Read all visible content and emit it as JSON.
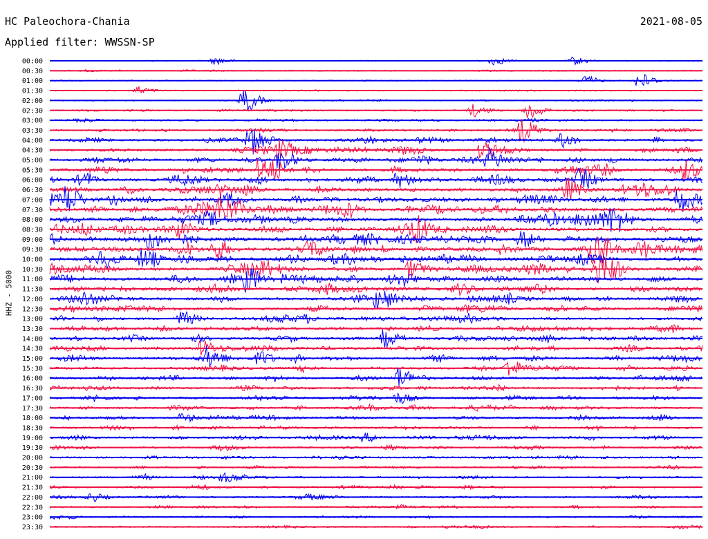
{
  "header": {
    "station": "HC Paleochora-Chania",
    "date": "2021-08-05",
    "filter": "Applied filter: WWSSN-SP"
  },
  "chart_data": {
    "type": "line",
    "title": "HC Paleochora-Chania",
    "date": "2021-08-05",
    "subtitle": "Applied filter: WWSSN-SP",
    "ylabel": "HHZ - 5000",
    "row_labels": [
      "00:00",
      "00:30",
      "01:00",
      "01:30",
      "02:00",
      "02:30",
      "03:00",
      "03:30",
      "04:00",
      "04:30",
      "05:00",
      "05:30",
      "06:00",
      "06:30",
      "07:00",
      "07:30",
      "08:00",
      "08:30",
      "09:00",
      "09:30",
      "10:00",
      "10:30",
      "11:00",
      "11:30",
      "12:00",
      "12:30",
      "13:00",
      "13:30",
      "14:00",
      "14:30",
      "15:00",
      "15:30",
      "16:00",
      "16:30",
      "17:00",
      "17:30",
      "18:00",
      "18:30",
      "19:00",
      "19:30",
      "20:00",
      "20:30",
      "21:00",
      "21:30",
      "22:00",
      "22:30",
      "23:00",
      "23:30"
    ],
    "colors": [
      "#0000ee",
      "#ee1144"
    ],
    "row_activity": [
      0.08,
      0.12,
      0.1,
      0.12,
      0.15,
      0.22,
      0.3,
      0.4,
      0.55,
      0.55,
      0.62,
      0.7,
      0.7,
      0.75,
      0.85,
      0.85,
      0.85,
      0.85,
      0.9,
      0.9,
      0.9,
      0.85,
      0.8,
      0.75,
      0.7,
      0.65,
      0.6,
      0.6,
      0.6,
      0.55,
      0.55,
      0.55,
      0.55,
      0.5,
      0.5,
      0.48,
      0.45,
      0.45,
      0.45,
      0.4,
      0.38,
      0.35,
      0.35,
      0.35,
      0.33,
      0.32,
      0.3,
      0.3
    ],
    "events": [
      {
        "row": 0,
        "x": 0.25,
        "amp": 0.5
      },
      {
        "row": 0,
        "x": 0.675,
        "amp": 0.6
      },
      {
        "row": 0,
        "x": 0.8,
        "amp": 0.5
      },
      {
        "row": 2,
        "x": 0.815,
        "amp": 0.7
      },
      {
        "row": 2,
        "x": 0.9,
        "amp": 1.1
      },
      {
        "row": 3,
        "x": 0.13,
        "amp": 0.6
      },
      {
        "row": 4,
        "x": 0.295,
        "amp": 1.8
      },
      {
        "row": 5,
        "x": 0.645,
        "amp": 0.9
      },
      {
        "row": 5,
        "x": 0.73,
        "amp": 1.4
      },
      {
        "row": 7,
        "x": 0.72,
        "amp": 1.5
      },
      {
        "row": 8,
        "x": 0.305,
        "amp": 1.9
      },
      {
        "row": 8,
        "x": 0.78,
        "amp": 1.0
      },
      {
        "row": 9,
        "x": 0.35,
        "amp": 1.2
      },
      {
        "row": 9,
        "x": 0.66,
        "amp": 1.2
      },
      {
        "row": 10,
        "x": 0.35,
        "amp": 1.6
      },
      {
        "row": 10,
        "x": 0.67,
        "amp": 1.6
      },
      {
        "row": 11,
        "x": 0.32,
        "amp": 1.8
      },
      {
        "row": 11,
        "x": 0.97,
        "amp": 1.1
      },
      {
        "row": 12,
        "x": 0.53,
        "amp": 1.1
      },
      {
        "row": 12,
        "x": 0.81,
        "amp": 1.2
      },
      {
        "row": 13,
        "x": 0.79,
        "amp": 1.4
      },
      {
        "row": 13,
        "x": 0.9,
        "amp": 1.2
      },
      {
        "row": 14,
        "x": 0.02,
        "amp": 1.9
      },
      {
        "row": 14,
        "x": 0.96,
        "amp": 1.5
      },
      {
        "row": 15,
        "x": 0.26,
        "amp": 1.3
      },
      {
        "row": 16,
        "x": 0.24,
        "amp": 1.0
      },
      {
        "row": 16,
        "x": 0.86,
        "amp": 1.4
      },
      {
        "row": 17,
        "x": 0.56,
        "amp": 1.0
      },
      {
        "row": 18,
        "x": 0.15,
        "amp": 1.4
      },
      {
        "row": 18,
        "x": 0.72,
        "amp": 1.2
      },
      {
        "row": 19,
        "x": 0.25,
        "amp": 1.4
      },
      {
        "row": 19,
        "x": 0.83,
        "amp": 1.5
      },
      {
        "row": 20,
        "x": 0.08,
        "amp": 1.2
      },
      {
        "row": 20,
        "x": 0.14,
        "amp": 1.3
      },
      {
        "row": 21,
        "x": 0.55,
        "amp": 1.3
      },
      {
        "row": 21,
        "x": 0.84,
        "amp": 1.4
      },
      {
        "row": 22,
        "x": 0.3,
        "amp": 1.4
      },
      {
        "row": 24,
        "x": 0.05,
        "amp": 1.0
      },
      {
        "row": 24,
        "x": 0.5,
        "amp": 1.5
      },
      {
        "row": 26,
        "x": 0.2,
        "amp": 1.0
      },
      {
        "row": 28,
        "x": 0.51,
        "amp": 1.2
      },
      {
        "row": 29,
        "x": 0.23,
        "amp": 1.1
      },
      {
        "row": 30,
        "x": 0.24,
        "amp": 1.6
      },
      {
        "row": 30,
        "x": 0.32,
        "amp": 0.8
      },
      {
        "row": 31,
        "x": 0.7,
        "amp": 1.3
      },
      {
        "row": 32,
        "x": 0.53,
        "amp": 1.6
      },
      {
        "row": 34,
        "x": 0.53,
        "amp": 0.8
      },
      {
        "row": 36,
        "x": 0.2,
        "amp": 0.6
      },
      {
        "row": 38,
        "x": 0.48,
        "amp": 0.6
      },
      {
        "row": 42,
        "x": 0.26,
        "amp": 0.5
      },
      {
        "row": 44,
        "x": 0.06,
        "amp": 0.6
      }
    ]
  }
}
